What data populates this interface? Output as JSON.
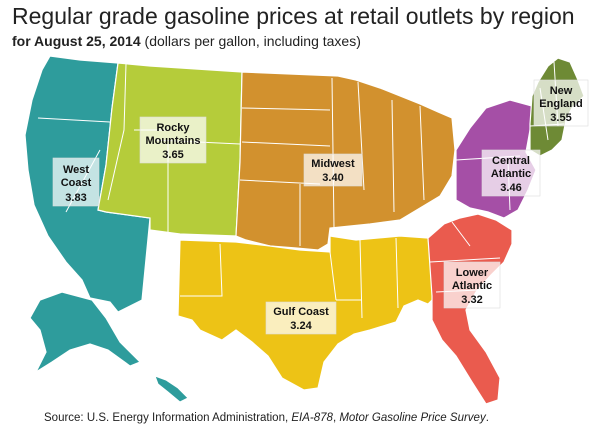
{
  "title": "Regular grade gasoline prices at retail outlets by region",
  "subtitle_date": "for August 25, 2014",
  "subtitle_rest": "(dollars per gallon, including taxes)",
  "regions": [
    {
      "name_lines": [
        "West",
        "Coast"
      ],
      "value": "3.83",
      "color": "#2E9C9C"
    },
    {
      "name_lines": [
        "Rocky",
        "Mountains"
      ],
      "value": "3.65",
      "color": "#B5CC3A"
    },
    {
      "name_lines": [
        "Midwest"
      ],
      "value": "3.40",
      "color": "#D2912E"
    },
    {
      "name_lines": [
        "Gulf Coast"
      ],
      "value": "3.24",
      "color": "#EDC316"
    },
    {
      "name_lines": [
        "Lower",
        "Atlantic"
      ],
      "value": "3.32",
      "color": "#EA5B4E"
    },
    {
      "name_lines": [
        "Central",
        "Atlantic"
      ],
      "value": "3.46",
      "color": "#A54FA6"
    },
    {
      "name_lines": [
        "New",
        "England"
      ],
      "value": "3.55",
      "color": "#6E8A35"
    }
  ],
  "source_prefix": "Source: U.S. Energy Information Administration,",
  "source_form": "EIA-878",
  "source_survey": "Motor Gasoline Price Survey",
  "source_suffix": "."
}
